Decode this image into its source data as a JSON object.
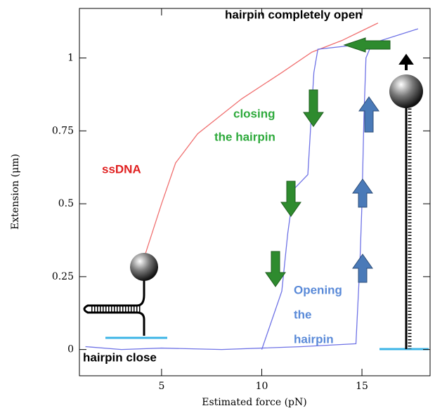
{
  "chart_data": {
    "type": "line",
    "xlabel": "Estimated force (pN)",
    "ylabel": "Extension (μm)",
    "xlim": [
      0.9,
      18.4
    ],
    "ylim": [
      -0.09,
      1.17
    ],
    "xticks": [
      5,
      10,
      15
    ],
    "yticks": [
      0,
      {
        "value": 0.25,
        "label": "0.25"
      },
      {
        "value": 0.5,
        "label": "0.5"
      },
      {
        "value": 0.75,
        "label": "0.75"
      },
      1
    ],
    "series": [
      {
        "color": "#f07070",
        "x": [
          4.2,
          5,
          5.7,
          6.8,
          9,
          11,
          12.5,
          14,
          15.8
        ],
        "values": [
          0.33,
          0.5,
          0.64,
          0.74,
          0.86,
          0.95,
          1.02,
          1.06,
          1.12
        ]
      },
      {
        "color": "#6f73e6",
        "x": [
          1.2,
          3,
          5,
          8,
          10,
          12,
          14.7,
          14.9,
          15,
          15.1,
          15.2,
          15.5,
          17.8
        ],
        "values": [
          0.01,
          0.0,
          0.005,
          0.0,
          0.005,
          0.01,
          0.02,
          0.3,
          0.5,
          0.8,
          1.0,
          1.05,
          1.1
        ]
      },
      {
        "color": "#6f73e6",
        "x": [
          15.4,
          12.8,
          12.6,
          12.3,
          11.6,
          11.3,
          11,
          10.5,
          10
        ],
        "values": [
          1.05,
          1.03,
          0.95,
          0.6,
          0.55,
          0.4,
          0.2,
          0.1,
          0.0
        ]
      }
    ],
    "annotations": [
      "hairpin completely open",
      "closing",
      "the hairpin",
      "ssDNA",
      "Opening",
      "the",
      "hairpin",
      "hairpin close"
    ]
  }
}
